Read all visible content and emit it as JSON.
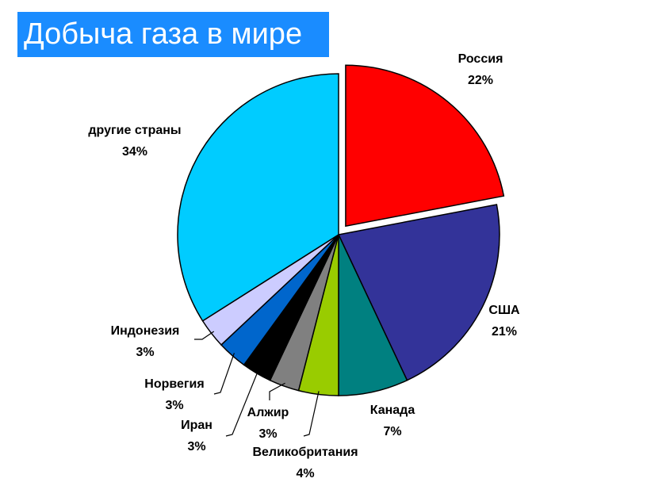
{
  "chart_data": {
    "type": "pie",
    "title": "Добыча газа в мире",
    "categories": [
      "Россия",
      "США",
      "Канада",
      "Великобритания",
      "Алжир",
      "Иран",
      "Норвегия",
      "Индонезия",
      "другие страны"
    ],
    "values": [
      22,
      21,
      7,
      4,
      3,
      3,
      3,
      3,
      34
    ],
    "value_labels": [
      "22%",
      "21%",
      "7%",
      "4%",
      "3%",
      "3%",
      "3%",
      "3%",
      "34%"
    ],
    "colors": [
      "#ff0000",
      "#333399",
      "#008080",
      "#99cc00",
      "#808080",
      "#000000",
      "#0066cc",
      "#ccccff",
      "#00ccff"
    ],
    "exploded": [
      0
    ]
  }
}
